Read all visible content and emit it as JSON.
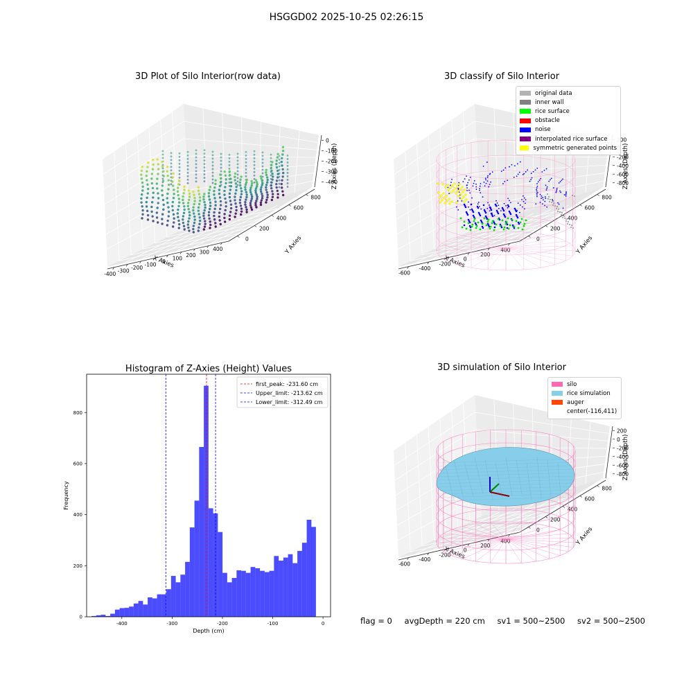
{
  "suptitle": "HSGGD02 2025-10-25 02:26:15",
  "panels": {
    "raw": {
      "title": "3D Plot of Silo Interior(row data)",
      "xlabel": "X Axies",
      "ylabel": "Y Axies",
      "zlabel": "Z Axies (Depth)",
      "xticks": [
        "-400",
        "-300",
        "-200",
        "-100",
        "0",
        "100",
        "200",
        "300",
        "400"
      ],
      "yticks": [
        "0",
        "200",
        "400",
        "600",
        "800"
      ],
      "zticks": [
        "0",
        "-100",
        "-200",
        "-300",
        "-400"
      ]
    },
    "classify": {
      "title": "3D classify of Silo Interior",
      "xlabel": "X Axies",
      "ylabel": "Y Axies",
      "zlabel": "Z Axies (Depth)",
      "xticks": [
        "-600",
        "-400",
        "-200",
        "0",
        "200",
        "400"
      ],
      "yticks": [
        "0",
        "200",
        "400",
        "600",
        "800"
      ],
      "zticks": [
        "200",
        "0",
        "-200",
        "-400",
        "-600",
        "-800"
      ],
      "legend": [
        {
          "label": "original data",
          "color": "#b3b3b3"
        },
        {
          "label": "inner wall",
          "color": "#808080"
        },
        {
          "label": "rice surface",
          "color": "#00ff00"
        },
        {
          "label": "obstacle",
          "color": "#ff0000"
        },
        {
          "label": "noise",
          "color": "#0000ff"
        },
        {
          "label": "interpolated rice surface",
          "color": "#800080"
        },
        {
          "label": "symmetric generated points",
          "color": "#ffff00"
        }
      ]
    },
    "simulation": {
      "title": "3D simulation of Silo Interior",
      "xlabel": "X Axies",
      "ylabel": "Y Axies",
      "zlabel": "Z Axies (Depth)",
      "xticks": [
        "-600",
        "-400",
        "-200",
        "0",
        "200",
        "400"
      ],
      "yticks": [
        "0",
        "200",
        "400",
        "600",
        "800"
      ],
      "zticks": [
        "200",
        "0",
        "-200",
        "-400",
        "-600",
        "-800"
      ],
      "legend": [
        {
          "label": "silo",
          "color": "#ff69b4"
        },
        {
          "label": "rice simulation",
          "color": "#87ceeb"
        },
        {
          "label": "auger",
          "color": "#ff4500"
        },
        {
          "label": "center(-116,411)",
          "color": ""
        }
      ]
    }
  },
  "footer": {
    "flag": "flag = 0",
    "avg_depth": "avgDepth = 220 cm",
    "sv1": "sv1 = 500~2500",
    "sv2": "sv2 = 500~2500"
  },
  "chart_data": [
    {
      "type": "bar",
      "title": "Histogram of Z-Axies (Height) Values",
      "xlabel": "Depth (cm)",
      "ylabel": "Frequency",
      "xlim": [
        -470,
        15
      ],
      "ylim": [
        0,
        950
      ],
      "xticks": [
        -400,
        -300,
        -200,
        -100,
        0
      ],
      "yticks": [
        0,
        200,
        400,
        600,
        800
      ],
      "bar_color": "#0000ff",
      "bin_width": 9.3,
      "bins_start": [
        -460.2,
        -450.9,
        -441.6,
        -432.3,
        -423.0,
        -413.7,
        -404.4,
        -395.1,
        -385.8,
        -376.5,
        -367.2,
        -357.9,
        -348.6,
        -339.3,
        -330.0,
        -320.7,
        -311.4,
        -302.1,
        -292.8,
        -283.5,
        -274.2,
        -264.9,
        -255.6,
        -246.3,
        -237.0,
        -227.7,
        -218.4,
        -209.1,
        -199.8,
        -190.5,
        -181.2,
        -171.9,
        -162.6,
        -153.3,
        -144.0,
        -134.7,
        -125.4,
        -116.1,
        -106.8,
        -97.5,
        -88.2,
        -78.9,
        -69.6,
        -60.3,
        -51.0,
        -41.7,
        -32.4,
        -23.4,
        -14.4
      ],
      "counts": [
        3,
        6,
        8,
        3,
        12,
        28,
        34,
        35,
        40,
        52,
        62,
        48,
        76,
        72,
        88,
        88,
        108,
        160,
        135,
        165,
        215,
        350,
        455,
        665,
        905,
        425,
        405,
        332,
        172,
        135,
        152,
        182,
        180,
        172,
        195,
        190,
        180,
        175,
        180,
        238,
        220,
        232,
        245,
        210,
        258,
        290,
        380,
        352,
        0
      ],
      "vlines": [
        {
          "name": "first_peak",
          "label": "first_peak: -231.60 cm",
          "x": -231.6,
          "color": "#ff0000"
        },
        {
          "name": "upper_limit",
          "label": "Upper_limit: -213.62 cm",
          "x": -213.62,
          "color": "#0000ff"
        },
        {
          "name": "lower_limit",
          "label": "Lower_limit: -312.49 cm",
          "x": -312.49,
          "color": "#0000ff"
        }
      ],
      "legend_position": "upper-right"
    }
  ]
}
